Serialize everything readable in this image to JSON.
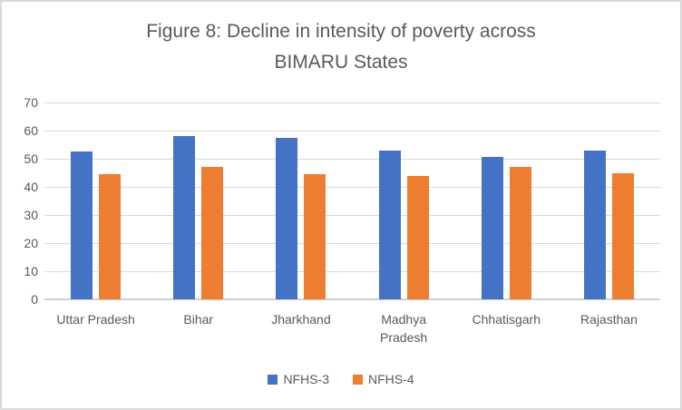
{
  "frame": {
    "background": "#FFFFFF",
    "border_color": "#D9D9D9"
  },
  "chart_data": {
    "type": "bar",
    "title": "Figure 8: Decline in intensity of poverty across BIMARU States",
    "title_lines": [
      "Figure 8: Decline in intensity of poverty across",
      "BIMARU States"
    ],
    "categories": [
      "Uttar Pradesh",
      "Bihar",
      "Jharkhand",
      "Madhya Pradesh",
      "Chhatisgarh",
      "Rajasthan"
    ],
    "category_label_lines": [
      [
        "Uttar Pradesh"
      ],
      [
        "Bihar"
      ],
      [
        "Jharkhand"
      ],
      [
        "Madhya",
        "Pradesh"
      ],
      [
        "Chhatisgarh"
      ],
      [
        "Rajasthan"
      ]
    ],
    "series": [
      {
        "name": "NFHS-3",
        "color": "#4472C4",
        "values": [
          52.5,
          58,
          57.5,
          53,
          50.5,
          53
        ]
      },
      {
        "name": "NFHS-4",
        "color": "#ED7D31",
        "values": [
          44.5,
          47,
          44.5,
          44,
          47,
          45
        ]
      }
    ],
    "xlabel": "",
    "ylabel": "",
    "ylim": [
      0,
      70
    ],
    "yticks": [
      0,
      10,
      20,
      30,
      40,
      50,
      60,
      70
    ],
    "grid": true,
    "legend_position": "bottom",
    "colors": {
      "title_text": "#595959",
      "axis_text": "#595959",
      "gridline": "#D9D9D9",
      "axis_line": "#D0D0D0"
    }
  }
}
